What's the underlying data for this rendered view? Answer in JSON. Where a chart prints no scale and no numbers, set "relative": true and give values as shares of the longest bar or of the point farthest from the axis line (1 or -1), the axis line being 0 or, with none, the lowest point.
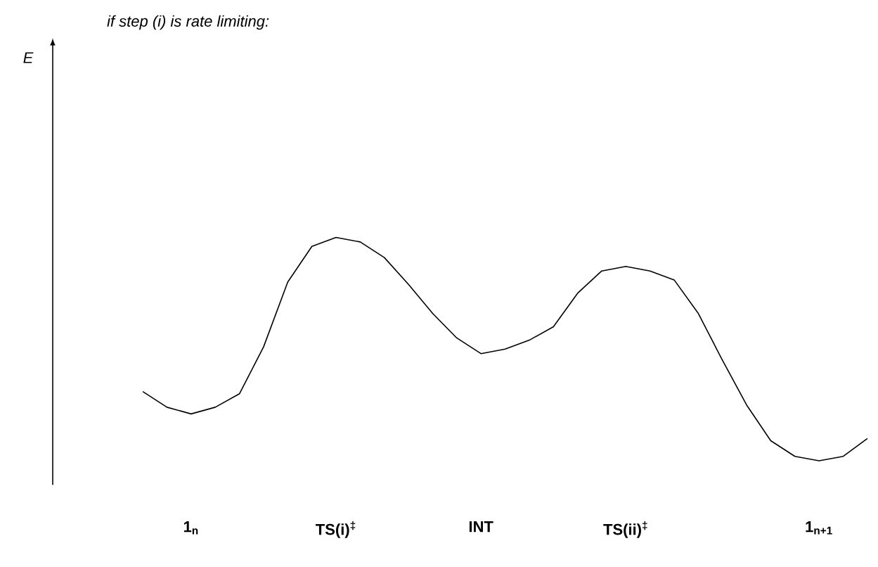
{
  "chart_data": {
    "type": "line",
    "title": "if step (i) is rate limiting:",
    "annotations": [
      "E"
    ],
    "relative": true,
    "marker": "none",
    "line_style": "solid",
    "categories": [
      null,
      null,
      "1$_{n}$",
      null,
      null,
      null,
      null,
      null,
      "TS(i)$^{‡}$",
      null,
      null,
      null,
      null,
      null,
      "INT",
      null,
      null,
      null,
      null,
      null,
      "TS(ii)$^{‡}$",
      null,
      null,
      null,
      null,
      null,
      null,
      null,
      "1$_{n+1}$",
      null,
      null
    ],
    "series": [
      {
        "color": "#000000",
        "values": [
          0.31,
          0.24,
          0.21,
          0.24,
          0.3,
          0.51,
          0.8,
          0.96,
          1,
          0.98,
          0.91,
          0.79,
          0.66,
          0.55,
          0.48,
          0.5,
          0.54,
          0.6,
          0.75,
          0.85,
          0.87,
          0.85,
          0.81,
          0.66,
          0.45,
          0.25,
          0.09,
          0.02,
          0,
          0.02,
          0.1
        ]
      }
    ]
  }
}
